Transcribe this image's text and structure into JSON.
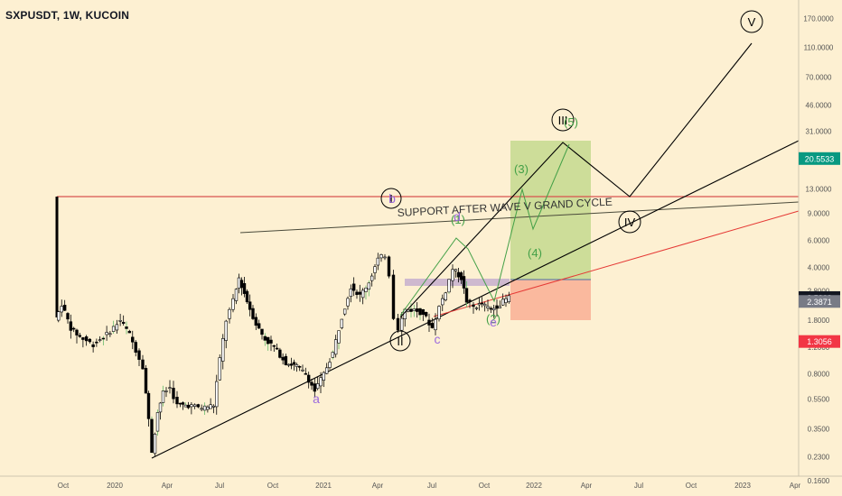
{
  "ticker": "SXPUSDT, 1W, KUCOIN",
  "colors": {
    "background": "#fdf0d2",
    "up_candle": "#ffffff",
    "down_candle": "#000000",
    "wick": "#000000",
    "resistance_line": "#d9534f",
    "support_line": "#e53935",
    "wave_green": "#43a047",
    "wave_purple": "#9c6ade",
    "target_box": "#8bc34a",
    "stop_box": "#f8a78c",
    "last_price_badge": "#131722",
    "target_badge": "#089981",
    "stop_badge": "#f23645",
    "ma_badge": "#787b86"
  },
  "chart_data": {
    "type": "candlestick",
    "y_scale": "log",
    "x_labels": [
      "Oct",
      "2020",
      "Apr",
      "Jul",
      "Oct",
      "2021",
      "Apr",
      "Jul",
      "Oct",
      "2022",
      "Apr",
      "Jul",
      "Oct",
      "2023",
      "Apr"
    ],
    "y_ticks": [
      "170.0000",
      "110.0000",
      "70.0000",
      "46.0000",
      "31.0000",
      "13.0000",
      "9.0000",
      "6.0000",
      "4.0000",
      "2.8000",
      "1.8000",
      "1.2000",
      "0.8000",
      "0.5500",
      "0.3500",
      "0.2300",
      "0.1600"
    ],
    "price_badges": [
      {
        "label": "20.5533",
        "value": 20.5533,
        "kind": "target"
      },
      {
        "label": "2.5309",
        "value": 2.5309,
        "kind": "last"
      },
      {
        "label": "2.3871",
        "value": 2.3871,
        "kind": "ma"
      },
      {
        "label": "1.3056",
        "value": 1.3056,
        "kind": "stop"
      }
    ],
    "annotation_text": "SUPPORT AFTER WAVE V GRAND CYCLE",
    "wave_labels": {
      "circled": [
        "I",
        "II",
        "III",
        "IV",
        "V"
      ],
      "green": [
        "(1)",
        "(2)",
        "(3)",
        "(4)",
        "(5)"
      ],
      "purple": [
        "a",
        "b",
        "c",
        "d",
        "e"
      ]
    }
  }
}
